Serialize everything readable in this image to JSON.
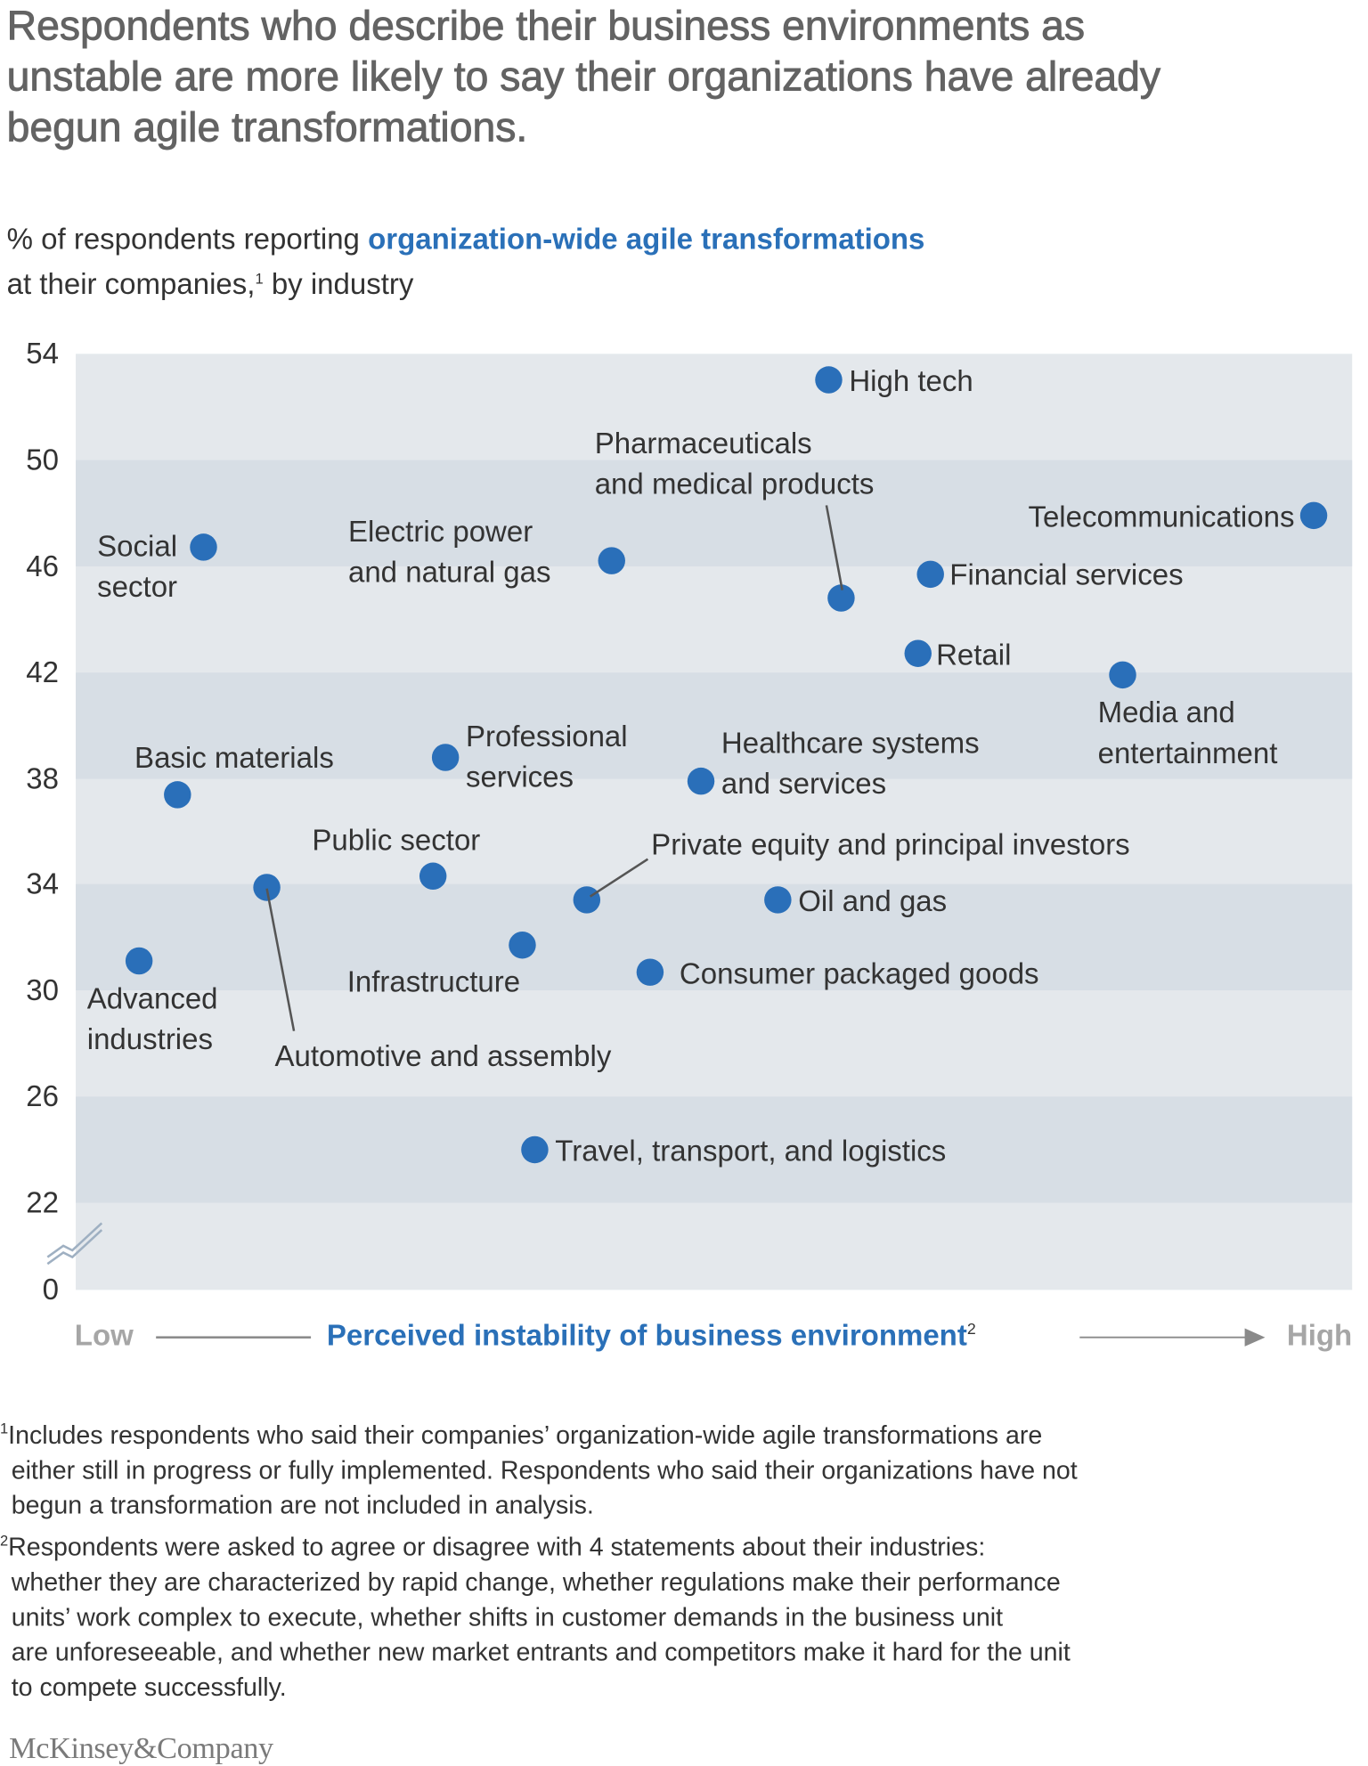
{
  "title_lines": [
    "Respondents who describe their business environments as",
    "unstable are more likely to say their organizations have already",
    "begun agile transformations."
  ],
  "subtitle": {
    "prefix": "% of respondents reporting ",
    "highlight": "organization-wide agile transformations",
    "line2_a": "at their companies,",
    "sup": "1",
    "line2_b": " by industry"
  },
  "colors": {
    "dot": "#2a6fb9",
    "accent_text": "#2a70b8",
    "band_dark": "#d7dee5",
    "band_light": "#e4e8ec",
    "title": "#636363",
    "axis_end_labels": "#a6a6a6"
  },
  "chart_data": {
    "type": "scatter",
    "title": "",
    "ylabel": "% of respondents reporting organization-wide agile transformations",
    "xlabel": "Perceived instability of business environment",
    "xlabel_sup": "2",
    "x_low_label": "Low",
    "x_high_label": "High",
    "x_scale_note": "relative position on Low–High axis (0–1), no printed scale",
    "ylim": [
      22,
      54
    ],
    "y_ticks": [
      "54",
      "50",
      "46",
      "42",
      "38",
      "34",
      "30",
      "26",
      "22",
      "0"
    ],
    "y_axis_break": true,
    "grid": "alternating horizontal bands",
    "points": [
      {
        "label": "High tech",
        "x": 0.59,
        "y": 53.0
      },
      {
        "label": "Pharmaceuticals\nand medical products",
        "x": 0.6,
        "y": 44.8
      },
      {
        "label": "Telecommunications",
        "x": 0.97,
        "y": 47.9
      },
      {
        "label": "Financial services",
        "x": 0.67,
        "y": 45.7
      },
      {
        "label": "Retail",
        "x": 0.66,
        "y": 42.7
      },
      {
        "label": "Media and\nentertainment",
        "x": 0.82,
        "y": 41.9
      },
      {
        "label": "Healthcare systems\nand services",
        "x": 0.49,
        "y": 37.9
      },
      {
        "label": "Oil and gas",
        "x": 0.55,
        "y": 33.4
      },
      {
        "label": "Consumer packaged goods",
        "x": 0.45,
        "y": 30.7
      },
      {
        "label": "Private equity and principal investors",
        "x": 0.4,
        "y": 33.4
      },
      {
        "label": "Infrastructure",
        "x": 0.35,
        "y": 31.7
      },
      {
        "label": "Travel, transport, and logistics",
        "x": 0.36,
        "y": 24.0
      },
      {
        "label": "Public sector",
        "x": 0.28,
        "y": 34.3
      },
      {
        "label": "Professional\nservices",
        "x": 0.29,
        "y": 38.8
      },
      {
        "label": "Electric power\nand natural gas",
        "x": 0.42,
        "y": 46.2
      },
      {
        "label": "Social\nsector",
        "x": 0.1,
        "y": 46.7
      },
      {
        "label": "Basic materials",
        "x": 0.08,
        "y": 37.4
      },
      {
        "label": "Automotive and assembly",
        "x": 0.15,
        "y": 33.9
      },
      {
        "label": "Advanced\nindustries",
        "x": 0.05,
        "y": 31.1
      }
    ]
  },
  "footnotes": [
    {
      "mark": "1",
      "lines": [
        "Includes respondents who said their companies’ organization-wide agile transformations are",
        "either still in progress or fully implemented. Respondents who said their organizations have not",
        "begun a transformation are not included in analysis."
      ]
    },
    {
      "mark": "2",
      "lines": [
        "Respondents were asked to agree or disagree with 4 statements about their industries:",
        "whether they are characterized by rapid change, whether regulations make their performance",
        "units’ work complex to execute, whether shifts in customer demands in the business unit",
        "are unforeseeable, and whether new market entrants and competitors make it hard for the unit",
        "to compete successfully."
      ]
    }
  ],
  "logo": "McKinsey&Company"
}
